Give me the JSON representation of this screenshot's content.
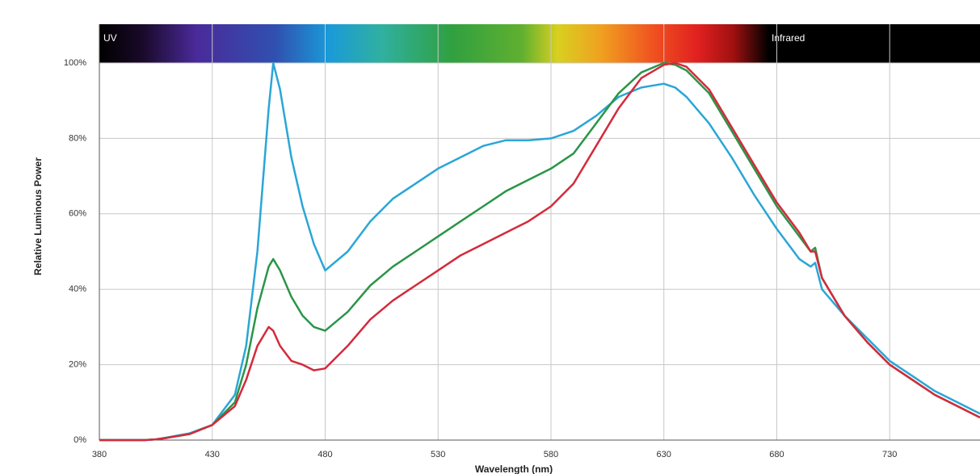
{
  "chart_data": {
    "type": "line",
    "ylabel": "Relative Luminous Power",
    "xlabel": "Wavelength (nm)",
    "annotations": [
      "UV",
      "Infrared"
    ],
    "x": [
      380,
      400,
      405,
      410,
      420,
      430,
      440,
      445,
      450,
      455,
      457,
      460,
      465,
      470,
      475,
      480,
      490,
      500,
      510,
      520,
      530,
      540,
      550,
      560,
      570,
      580,
      590,
      600,
      610,
      620,
      630,
      635,
      640,
      650,
      660,
      670,
      680,
      690,
      695,
      697,
      700,
      710,
      720,
      730,
      740,
      750,
      760,
      770
    ],
    "series": [
      {
        "color": "#2aa6d6",
        "values": [
          0,
          0,
          0.2,
          0.7,
          1.8,
          4,
          12,
          25,
          50,
          88,
          100,
          93,
          75,
          62,
          52,
          45,
          50,
          58,
          64,
          68,
          72,
          75,
          78,
          79.5,
          79.5,
          80,
          82,
          86,
          91,
          93.5,
          94.5,
          93.5,
          91,
          84,
          75,
          65,
          56,
          48,
          46,
          47,
          40,
          33,
          27,
          21,
          17,
          13,
          10,
          7
        ]
      },
      {
        "color": "#2a9548",
        "values": [
          0,
          0,
          0.2,
          0.6,
          1.6,
          4,
          10,
          20,
          35,
          46,
          48,
          45,
          38,
          33,
          30,
          29,
          34,
          41,
          46,
          50,
          54,
          58,
          62,
          66,
          69,
          72,
          76,
          84,
          92,
          97.5,
          100,
          99.5,
          98,
          92,
          82,
          72,
          62,
          54,
          50,
          51,
          43,
          33,
          26,
          20,
          16,
          12,
          9,
          6
        ]
      },
      {
        "color": "#d42a3c",
        "values": [
          0,
          0,
          0.2,
          0.6,
          1.6,
          4,
          9,
          16,
          25,
          30,
          29,
          25,
          21,
          20,
          18.5,
          19,
          25,
          32,
          37,
          41,
          45,
          49,
          52,
          55,
          58,
          62,
          68,
          78,
          88,
          96,
          99.5,
          100,
          99,
          93,
          83,
          73,
          63,
          55,
          50,
          50,
          43,
          33,
          26,
          20,
          16,
          12,
          9,
          6
        ]
      }
    ],
    "xlim": [
      380,
      770
    ],
    "xticks": [
      380,
      430,
      480,
      530,
      580,
      630,
      680,
      730
    ],
    "ylim": [
      0,
      100
    ],
    "yticks": [
      {
        "value": 0,
        "label": "0%"
      },
      {
        "value": 20,
        "label": "20%"
      },
      {
        "value": 40,
        "label": "40%"
      },
      {
        "value": 60,
        "label": "60%"
      },
      {
        "value": 80,
        "label": "80%"
      },
      {
        "value": 100,
        "label": "100%"
      }
    ],
    "grid": true
  }
}
